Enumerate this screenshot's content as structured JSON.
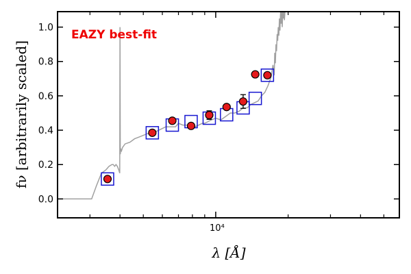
{
  "chart_data": {
    "type": "scatter",
    "title": "",
    "annotation": {
      "text": "EAZY best-fit",
      "color": "#ee0000"
    },
    "xlabel": "λ [Å]",
    "ylabel": "fν [arbitrarily scaled]",
    "xscale": "log",
    "xlim": [
      2200,
      58000
    ],
    "ylim": [
      -0.11,
      1.09
    ],
    "yticks": [
      0.0,
      0.2,
      0.4,
      0.6,
      0.8,
      1.0
    ],
    "ytick_labels": [
      "0.0",
      "0.2",
      "0.4",
      "0.6",
      "0.8",
      "1.0"
    ],
    "xtick_label_value": 10000,
    "xtick_label": "10⁴",
    "grid": false,
    "colors": {
      "template": "#a0a0a0",
      "observed_fill": "#e41a1c",
      "observed_edge": "#000000",
      "model_box": "#1515d0",
      "errorbar": "#000000"
    },
    "series": [
      {
        "role": "template-spectrum",
        "x": [
          2200,
          3050,
          3200,
          3350,
          3500,
          3600,
          3700,
          3750,
          3800,
          3850,
          3900,
          3950,
          3990,
          4000,
          4010,
          4030,
          4060,
          4100,
          4200,
          4400,
          4600,
          4800,
          5000,
          5200,
          5400,
          5600,
          5800,
          6000,
          6200,
          6500,
          6800,
          7000,
          7300,
          7600,
          7900,
          8200,
          8500,
          8800,
          9000,
          9300,
          9600,
          10000,
          10500,
          11000,
          11500,
          12000,
          12500,
          13000,
          13500,
          14000,
          14500,
          15000,
          15500,
          16000,
          16500,
          17000,
          17300,
          17500,
          17600,
          17700,
          17800,
          17900,
          18000,
          18100,
          18200,
          18300,
          18400,
          18500,
          18600,
          18700,
          18800,
          18900,
          19000,
          19100,
          19200,
          19300,
          19400
        ],
        "y": [
          0.0,
          0.0,
          0.08,
          0.15,
          0.17,
          0.19,
          0.2,
          0.2,
          0.19,
          0.2,
          0.19,
          0.17,
          0.15,
          1.0,
          0.26,
          0.29,
          0.28,
          0.3,
          0.32,
          0.33,
          0.35,
          0.36,
          0.37,
          0.38,
          0.38,
          0.39,
          0.4,
          0.41,
          0.42,
          0.42,
          0.42,
          0.44,
          0.43,
          0.43,
          0.42,
          0.42,
          0.43,
          0.44,
          0.44,
          0.45,
          0.46,
          0.47,
          0.46,
          0.48,
          0.5,
          0.5,
          0.51,
          0.53,
          0.53,
          0.55,
          0.56,
          0.57,
          0.6,
          0.62,
          0.66,
          0.71,
          0.78,
          0.72,
          0.85,
          0.79,
          0.9,
          0.86,
          0.96,
          0.92,
          1.0,
          0.95,
          1.05,
          0.98,
          1.1,
          1.02,
          1.1,
          1.0,
          1.1,
          1.05,
          1.1,
          1.04,
          1.1
        ]
      },
      {
        "role": "model-photometry",
        "x": [
          3550,
          5450,
          6600,
          7900,
          9400,
          11100,
          13000,
          14600,
          16400
        ],
        "y": [
          0.116,
          0.385,
          0.43,
          0.45,
          0.47,
          0.49,
          0.53,
          0.585,
          0.72
        ]
      },
      {
        "role": "observed-photometry",
        "x": [
          3550,
          5450,
          6600,
          7900,
          9400,
          11100,
          13000,
          14600,
          16400
        ],
        "y": [
          0.116,
          0.385,
          0.455,
          0.425,
          0.488,
          0.535,
          0.567,
          0.725,
          0.72
        ],
        "yerr": [
          0,
          0,
          0,
          0,
          0.025,
          0,
          0.04,
          0,
          0
        ]
      }
    ]
  }
}
